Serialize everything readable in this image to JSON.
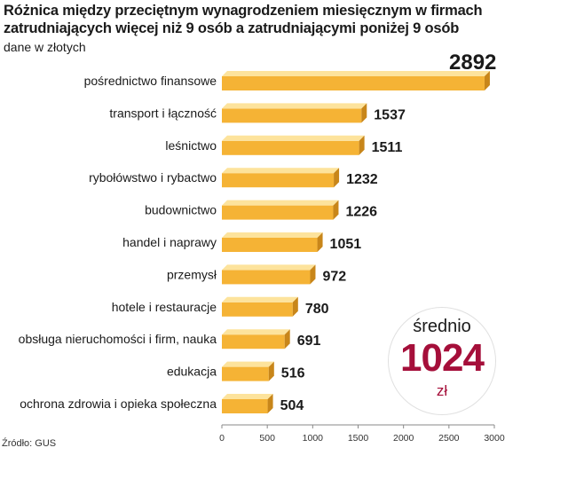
{
  "chart_data": {
    "type": "bar",
    "orientation": "horizontal",
    "title": "Różnica między przeciętnym wynagrodzeniem miesięcznym w firmach zatrudniających więcej niż 9 osób a zatrudniającymi poniżej 9 osób",
    "subtitle": "dane w złotych",
    "source": "Źródło: GUS",
    "categories": [
      "pośrednictwo finansowe",
      "transport i łączność",
      "leśnictwo",
      "rybołówstwo i rybactwo",
      "budownictwo",
      "handel i naprawy",
      "przemysł",
      "hotele i restauracje",
      "obsługa nieruchomości i firm, nauka",
      "edukacja",
      "ochrona zdrowia i opieka społeczna"
    ],
    "values": [
      2892,
      1537,
      1511,
      1232,
      1226,
      1051,
      972,
      780,
      691,
      516,
      504
    ],
    "value_labels": [
      "2892",
      "1537",
      "1511",
      "1232",
      "1226",
      "1051",
      "972",
      "780",
      "691",
      "516",
      "504"
    ],
    "xlim": [
      0,
      3000
    ],
    "xticks": [
      0,
      500,
      1000,
      1500,
      2000,
      2500,
      3000
    ],
    "xtick_labels": [
      "0",
      "500",
      "1000",
      "1500",
      "2000",
      "2500",
      "3000"
    ],
    "bar_color": "#f5b335",
    "bar_top_color": "#fde39c",
    "bar_side_color": "#c8861a",
    "grid": false,
    "average": {
      "label": "średnio",
      "value": 1024,
      "value_text": "1024",
      "unit": "zł",
      "color": "#a50f3a"
    }
  }
}
